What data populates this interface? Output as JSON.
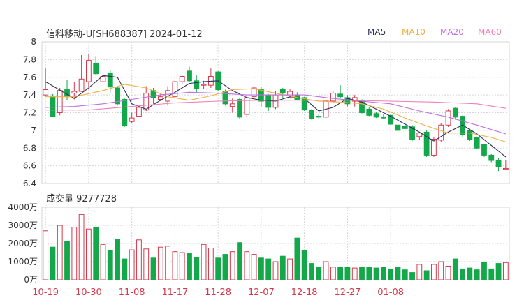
{
  "header": {
    "title": "信科移动-U[SH688387] 2024-01-12",
    "volume_label": "成交量 9277728"
  },
  "legend": [
    {
      "name": "MA5",
      "color": "#2b2f5c"
    },
    {
      "name": "MA10",
      "color": "#f0b040"
    },
    {
      "name": "MA20",
      "color": "#c070e0"
    },
    {
      "name": "MA60",
      "color": "#f080b8"
    }
  ],
  "colors": {
    "up": "#d43a4c",
    "down": "#13a84a",
    "grid": "#d5d5d5",
    "axis_text": "#333333",
    "date_text": "#d43a4c"
  },
  "chart_data": [
    {
      "type": "candlestick",
      "title": "信科移动-U[SH688387] 2024-01-12",
      "ylim": [
        6.4,
        8
      ],
      "yticks": [
        6.4,
        6.6,
        6.8,
        7,
        7.2,
        7.4,
        7.6,
        7.8,
        8
      ],
      "ytick_labels": [
        "6.4",
        "6.6",
        "6.8",
        "7",
        "7.2",
        "7.4",
        "7.6",
        "7.8",
        "8"
      ],
      "grid": true,
      "ohlc": [
        [
          7.4,
          7.46,
          7.7,
          7.38
        ],
        [
          7.38,
          7.16,
          7.41,
          7.15
        ],
        [
          7.2,
          7.45,
          7.48,
          7.17
        ],
        [
          7.46,
          7.38,
          7.57,
          7.34
        ],
        [
          7.42,
          7.44,
          7.55,
          7.35
        ],
        [
          7.44,
          7.58,
          7.85,
          7.44
        ],
        [
          7.55,
          7.79,
          7.86,
          7.49
        ],
        [
          7.76,
          7.64,
          7.84,
          7.62
        ],
        [
          7.55,
          7.61,
          7.66,
          7.4
        ],
        [
          7.65,
          7.49,
          7.68,
          7.42
        ],
        [
          7.48,
          7.3,
          7.5,
          7.28
        ],
        [
          7.35,
          7.05,
          7.36,
          7.04
        ],
        [
          7.1,
          7.14,
          7.2,
          7.08
        ],
        [
          7.16,
          7.26,
          7.28,
          7.15
        ],
        [
          7.23,
          7.42,
          7.5,
          7.22
        ],
        [
          7.45,
          7.37,
          7.48,
          7.3
        ],
        [
          7.35,
          7.38,
          7.42,
          7.33
        ],
        [
          7.33,
          7.45,
          7.5,
          7.28
        ],
        [
          7.38,
          7.55,
          7.57,
          7.37
        ],
        [
          7.55,
          7.61,
          7.63,
          7.52
        ],
        [
          7.67,
          7.56,
          7.72,
          7.55
        ],
        [
          7.56,
          7.47,
          7.62,
          7.43
        ],
        [
          7.51,
          7.52,
          7.56,
          7.47
        ],
        [
          7.51,
          7.61,
          7.7,
          7.48
        ],
        [
          7.66,
          7.46,
          7.67,
          7.44
        ],
        [
          7.44,
          7.3,
          7.46,
          7.28
        ],
        [
          7.27,
          7.3,
          7.36,
          7.2
        ],
        [
          7.35,
          7.15,
          7.37,
          7.13
        ],
        [
          7.18,
          7.37,
          7.4,
          7.14
        ],
        [
          7.38,
          7.48,
          7.5,
          7.36
        ],
        [
          7.46,
          7.33,
          7.49,
          7.26
        ],
        [
          7.4,
          7.26,
          7.41,
          7.22
        ],
        [
          7.26,
          7.4,
          7.44,
          7.24
        ],
        [
          7.46,
          7.42,
          7.48,
          7.37
        ],
        [
          7.39,
          7.44,
          7.47,
          7.36
        ],
        [
          7.4,
          7.35,
          7.43,
          7.34
        ],
        [
          7.37,
          7.23,
          7.38,
          7.22
        ],
        [
          7.23,
          7.13,
          7.24,
          7.12
        ],
        [
          7.16,
          7.15,
          7.18,
          7.13
        ],
        [
          7.15,
          7.33,
          7.34,
          7.14
        ],
        [
          7.33,
          7.42,
          7.45,
          7.31
        ],
        [
          7.41,
          7.38,
          7.51,
          7.36
        ],
        [
          7.37,
          7.3,
          7.4,
          7.27
        ],
        [
          7.33,
          7.37,
          7.4,
          7.27
        ],
        [
          7.33,
          7.2,
          7.35,
          7.19
        ],
        [
          7.24,
          7.17,
          7.26,
          7.16
        ],
        [
          7.19,
          7.15,
          7.21,
          7.14
        ],
        [
          7.15,
          7.14,
          7.18,
          7.13
        ],
        [
          7.17,
          7.07,
          7.18,
          7.06
        ],
        [
          7.06,
          7.0,
          7.08,
          6.98
        ],
        [
          7.05,
          7.02,
          7.08,
          7.01
        ],
        [
          7.04,
          6.9,
          7.06,
          6.88
        ],
        [
          6.93,
          6.97,
          6.98,
          6.89
        ],
        [
          6.98,
          6.72,
          7.0,
          6.7
        ],
        [
          6.72,
          6.9,
          6.92,
          6.7
        ],
        [
          6.89,
          7.06,
          7.08,
          6.87
        ],
        [
          7.06,
          7.22,
          7.24,
          7.04
        ],
        [
          7.25,
          7.15,
          7.26,
          7.12
        ],
        [
          7.16,
          6.95,
          7.17,
          6.93
        ],
        [
          7.0,
          6.9,
          7.02,
          6.88
        ],
        [
          6.92,
          6.8,
          6.93,
          6.79
        ],
        [
          6.84,
          6.72,
          6.85,
          6.7
        ],
        [
          6.72,
          6.66,
          6.73,
          6.64
        ],
        [
          6.66,
          6.59,
          6.69,
          6.54
        ],
        [
          6.56,
          6.57,
          6.66,
          6.55
        ]
      ],
      "ma_lines": [
        {
          "name": "MA5",
          "points": [
            [
              0,
              7.55
            ],
            [
              4,
              7.36
            ],
            [
              6,
              7.48
            ],
            [
              8,
              7.62
            ],
            [
              10,
              7.6
            ],
            [
              12,
              7.3
            ],
            [
              14,
              7.24
            ],
            [
              16,
              7.34
            ],
            [
              18,
              7.43
            ],
            [
              20,
              7.53
            ],
            [
              22,
              7.55
            ],
            [
              24,
              7.56
            ],
            [
              26,
              7.45
            ],
            [
              28,
              7.37
            ],
            [
              30,
              7.34
            ],
            [
              32,
              7.33
            ],
            [
              34,
              7.38
            ],
            [
              36,
              7.36
            ],
            [
              38,
              7.22
            ],
            [
              40,
              7.26
            ],
            [
              42,
              7.36
            ],
            [
              44,
              7.32
            ],
            [
              46,
              7.24
            ],
            [
              48,
              7.16
            ],
            [
              50,
              7.07
            ],
            [
              52,
              6.98
            ],
            [
              54,
              6.88
            ],
            [
              56,
              6.98
            ],
            [
              58,
              7.06
            ],
            [
              60,
              6.96
            ],
            [
              62,
              6.83
            ],
            [
              64,
              6.7
            ]
          ]
        },
        {
          "name": "MA10",
          "points": [
            [
              0,
              7.38
            ],
            [
              4,
              7.38
            ],
            [
              8,
              7.45
            ],
            [
              11,
              7.52
            ],
            [
              14,
              7.48
            ],
            [
              17,
              7.38
            ],
            [
              20,
              7.34
            ],
            [
              23,
              7.39
            ],
            [
              26,
              7.46
            ],
            [
              29,
              7.47
            ],
            [
              32,
              7.42
            ],
            [
              35,
              7.37
            ],
            [
              38,
              7.33
            ],
            [
              41,
              7.32
            ],
            [
              44,
              7.3
            ],
            [
              47,
              7.24
            ],
            [
              50,
              7.14
            ],
            [
              53,
              7.05
            ],
            [
              56,
              6.97
            ],
            [
              59,
              6.97
            ],
            [
              62,
              6.92
            ],
            [
              64,
              6.87
            ]
          ]
        },
        {
          "name": "MA20",
          "points": [
            [
              0,
              7.26
            ],
            [
              4,
              7.27
            ],
            [
              8,
              7.3
            ],
            [
              12,
              7.35
            ],
            [
              16,
              7.4
            ],
            [
              20,
              7.43
            ],
            [
              24,
              7.42
            ],
            [
              28,
              7.4
            ],
            [
              32,
              7.4
            ],
            [
              36,
              7.4
            ],
            [
              40,
              7.36
            ],
            [
              44,
              7.33
            ],
            [
              48,
              7.3
            ],
            [
              52,
              7.22
            ],
            [
              56,
              7.15
            ],
            [
              60,
              7.06
            ],
            [
              64,
              6.96
            ]
          ]
        },
        {
          "name": "MA60",
          "points": [
            [
              0,
              7.23
            ],
            [
              6,
              7.23
            ],
            [
              12,
              7.27
            ],
            [
              18,
              7.31
            ],
            [
              24,
              7.33
            ],
            [
              30,
              7.34
            ],
            [
              36,
              7.34
            ],
            [
              42,
              7.34
            ],
            [
              48,
              7.33
            ],
            [
              54,
              7.32
            ],
            [
              60,
              7.3
            ],
            [
              64,
              7.25
            ]
          ]
        }
      ]
    },
    {
      "type": "bar",
      "title": "成交量 9277728",
      "ylim": [
        0,
        4000
      ],
      "yticks": [
        0,
        1000,
        2000,
        3000,
        4000
      ],
      "ytick_labels": [
        "0万",
        "1000万",
        "2000万",
        "3000万",
        "4000万"
      ],
      "grid": true,
      "values": [
        2700,
        1800,
        3000,
        2100,
        2900,
        3600,
        2800,
        2900,
        1950,
        1600,
        2250,
        1150,
        1650,
        2200,
        1700,
        1200,
        1800,
        1850,
        1550,
        1500,
        1450,
        1250,
        1950,
        1750,
        1200,
        1400,
        1550,
        2050,
        1550,
        1400,
        1200,
        1150,
        1000,
        1300,
        1150,
        2300,
        1600,
        900,
        700,
        1000,
        700,
        700,
        700,
        650,
        700,
        700,
        650,
        700,
        600,
        700,
        550,
        400,
        850,
        500,
        850,
        1000,
        750,
        1150,
        600,
        650,
        550,
        950,
        600,
        900,
        950
      ]
    }
  ],
  "x_axis": {
    "tick_labels": [
      "10-19",
      "10-30",
      "11-08",
      "11-17",
      "11-28",
      "12-07",
      "12-18",
      "12-27",
      "01-08"
    ],
    "tick_index": [
      0,
      6,
      12,
      18,
      24,
      30,
      36,
      42,
      48
    ]
  }
}
